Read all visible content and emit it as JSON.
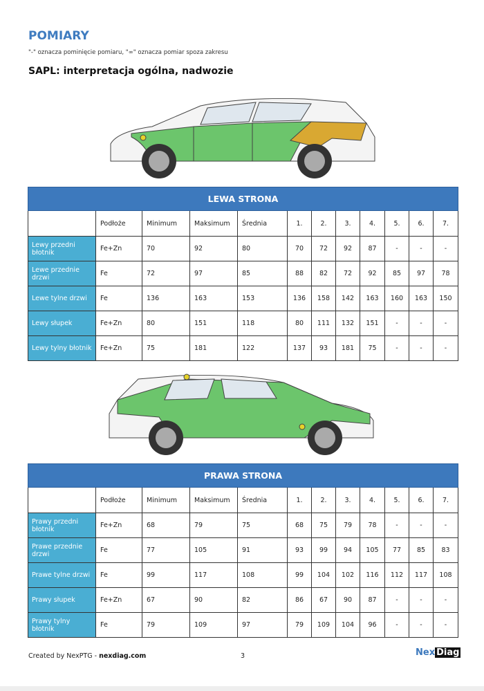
{
  "title": "POMIARY",
  "note": "\"-\" oznacza pominięcie pomiaru, \"∞\" oznacza pomiar spoza zakresu",
  "subtitle": "SAPL: interpretacja ogólna, nadwozie",
  "columns": [
    "",
    "Podłoże",
    "Minimum",
    "Maksimum",
    "Średnia",
    "1.",
    "2.",
    "3.",
    "4.",
    "5.",
    "6.",
    "7."
  ],
  "colors": {
    "accent": "#3d79bd",
    "label_bg": "#4aaed3",
    "panel_green": "#6cc56c",
    "panel_amber": "#d9a832",
    "point_yellow": "#e6d22a"
  },
  "left": {
    "heading": "LEWA STRONA",
    "rows": [
      {
        "label": "Lewy przedni błotnik",
        "cells": [
          "Fe+Zn",
          "70",
          "92",
          "80",
          "70",
          "72",
          "92",
          "87",
          "-",
          "-",
          "-"
        ]
      },
      {
        "label": "Lewe przednie drzwi",
        "cells": [
          "Fe",
          "72",
          "97",
          "85",
          "88",
          "82",
          "72",
          "92",
          "85",
          "97",
          "78"
        ]
      },
      {
        "label": "Lewe tylne drzwi",
        "cells": [
          "Fe",
          "136",
          "163",
          "153",
          "136",
          "158",
          "142",
          "163",
          "160",
          "163",
          "150"
        ]
      },
      {
        "label": "Lewy słupek",
        "cells": [
          "Fe+Zn",
          "80",
          "151",
          "118",
          "80",
          "111",
          "132",
          "151",
          "-",
          "-",
          "-"
        ]
      },
      {
        "label": "Lewy tylny błotnik",
        "cells": [
          "Fe+Zn",
          "75",
          "181",
          "122",
          "137",
          "93",
          "181",
          "75",
          "-",
          "-",
          "-"
        ]
      }
    ]
  },
  "right": {
    "heading": "PRAWA STRONA",
    "rows": [
      {
        "label": "Prawy przedni błotnik",
        "cells": [
          "Fe+Zn",
          "68",
          "79",
          "75",
          "68",
          "75",
          "79",
          "78",
          "-",
          "-",
          "-"
        ]
      },
      {
        "label": "Prawe przednie drzwi",
        "cells": [
          "Fe",
          "77",
          "105",
          "91",
          "93",
          "99",
          "94",
          "105",
          "77",
          "85",
          "83"
        ]
      },
      {
        "label": "Prawe tylne drzwi",
        "cells": [
          "Fe",
          "99",
          "117",
          "108",
          "99",
          "104",
          "102",
          "116",
          "112",
          "117",
          "108"
        ]
      },
      {
        "label": "Prawy słupek",
        "cells": [
          "Fe+Zn",
          "67",
          "90",
          "82",
          "86",
          "67",
          "90",
          "87",
          "-",
          "-",
          "-"
        ]
      },
      {
        "label": "Prawy tylny błotnik",
        "cells": [
          "Fe",
          "79",
          "109",
          "97",
          "79",
          "109",
          "104",
          "96",
          "-",
          "-",
          "-"
        ]
      }
    ]
  },
  "footer": {
    "prefix": "Created by NexPTG - ",
    "link": "nexdiag.com",
    "page": "3",
    "logo_a": "Nex",
    "logo_b": "Diag"
  }
}
